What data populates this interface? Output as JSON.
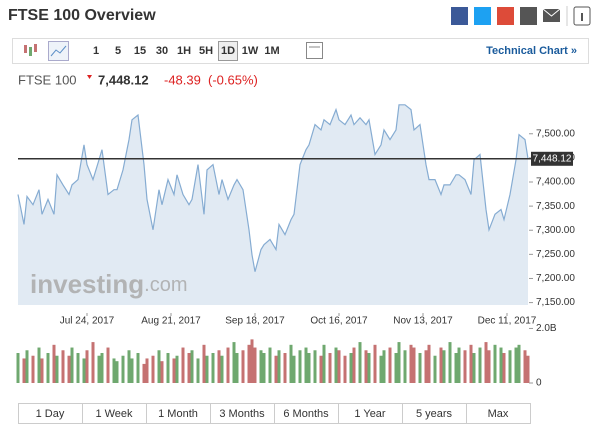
{
  "header": {
    "title": "FTSE 100 Overview"
  },
  "toolbar": {
    "intervals": [
      "1",
      "5",
      "15",
      "30",
      "1H",
      "5H",
      "1D",
      "1W",
      "1M"
    ],
    "active": 6,
    "link": "Technical Chart »"
  },
  "quote": {
    "name": "FTSE 100",
    "price": "7,448.12",
    "change": "-48.39",
    "change_pct": "(-0.65%)"
  },
  "watermark": {
    "brand": "investing",
    "suffix": ".com"
  },
  "periods": [
    "1 Day",
    "1 Week",
    "1 Month",
    "3 Months",
    "6 Months",
    "1 Year",
    "5 years",
    "Max"
  ],
  "chart_data": [
    {
      "type": "area",
      "x": [
        "2017-07-01",
        "2017-07-03",
        "2017-07-04",
        "2017-07-06",
        "2017-07-08",
        "2017-07-09",
        "2017-07-11",
        "2017-07-13",
        "2017-07-14",
        "2017-07-16",
        "2017-07-18",
        "2017-07-19",
        "2017-07-21",
        "2017-07-23",
        "2017-07-24",
        "2017-07-26",
        "2017-07-28",
        "2017-07-29",
        "2017-07-31",
        "2017-08-02",
        "2017-08-03",
        "2017-08-05",
        "2017-08-07",
        "2017-08-08",
        "2017-08-10",
        "2017-08-12",
        "2017-08-13",
        "2017-08-15",
        "2017-08-17",
        "2017-08-18",
        "2017-08-20",
        "2017-08-22",
        "2017-08-23",
        "2017-08-25",
        "2017-08-27",
        "2017-08-28",
        "2017-08-30",
        "2017-09-01",
        "2017-09-02",
        "2017-09-04",
        "2017-09-06",
        "2017-09-07",
        "2017-09-09",
        "2017-09-11",
        "2017-09-12",
        "2017-09-14",
        "2017-09-16",
        "2017-09-17",
        "2017-09-18",
        "2017-09-20",
        "2017-09-21",
        "2017-09-23",
        "2017-09-25",
        "2017-09-26",
        "2017-09-28",
        "2017-09-30",
        "2017-10-01",
        "2017-10-03",
        "2017-10-05",
        "2017-10-06",
        "2017-10-08",
        "2017-10-10",
        "2017-10-11",
        "2017-10-13",
        "2017-10-15",
        "2017-10-16",
        "2017-10-18",
        "2017-10-20",
        "2017-10-21",
        "2017-10-23",
        "2017-10-25",
        "2017-10-26",
        "2017-10-28",
        "2017-10-30",
        "2017-10-31",
        "2017-11-02",
        "2017-11-04",
        "2017-11-05",
        "2017-11-07",
        "2017-11-09",
        "2017-11-10",
        "2017-11-12",
        "2017-11-14",
        "2017-11-15",
        "2017-11-17",
        "2017-11-19",
        "2017-11-20",
        "2017-11-22",
        "2017-11-24",
        "2017-11-25",
        "2017-11-27",
        "2017-11-29",
        "2017-11-30",
        "2017-12-02",
        "2017-12-04",
        "2017-12-05",
        "2017-12-07",
        "2017-12-09",
        "2017-12-10",
        "2017-12-12",
        "2017-12-14",
        "2017-12-15",
        "2017-12-17",
        "2017-12-18"
      ],
      "values": [
        7374,
        7312,
        7370,
        7353,
        7384,
        7333,
        7364,
        7333,
        7415,
        7394,
        7374,
        7394,
        7405,
        7477,
        7436,
        7405,
        7446,
        7467,
        7374,
        7384,
        7384,
        7425,
        7488,
        7529,
        7539,
        7436,
        7364,
        7301,
        7384,
        7353,
        7405,
        7374,
        7415,
        7374,
        7353,
        7364,
        7436,
        7333,
        7425,
        7436,
        7374,
        7405,
        7364,
        7394,
        7405,
        7384,
        7301,
        7249,
        7214,
        7260,
        7270,
        7281,
        7260,
        7312,
        7291,
        7322,
        7333,
        7436,
        7467,
        7477,
        7519,
        7508,
        7529,
        7519,
        7550,
        7529,
        7519,
        7539,
        7519,
        7533,
        7519,
        7529,
        7457,
        7477,
        7508,
        7488,
        7508,
        7560,
        7560,
        7550,
        7508,
        7519,
        7436,
        7405,
        7405,
        7374,
        7394,
        7394,
        7415,
        7415,
        7405,
        7374,
        7446,
        7457,
        7343,
        7301,
        7333,
        7343,
        7322,
        7374,
        7446,
        7498,
        7488,
        7448.12
      ],
      "color": "#86acd2",
      "fill": "#e1eaf3",
      "xlim": [
        "2017-07-01",
        "2017-12-18"
      ],
      "xticks": [
        {
          "value": "2017-07-24",
          "label": "Jul 24, 2017"
        },
        {
          "value": "2017-08-21",
          "label": "Aug 21, 2017"
        },
        {
          "value": "2017-09-18",
          "label": "Sep 18, 2017"
        },
        {
          "value": "2017-10-16",
          "label": "Oct 16, 2017"
        },
        {
          "value": "2017-11-13",
          "label": "Nov 13, 2017"
        },
        {
          "value": "2017-12-11",
          "label": "Dec 11, 2017"
        }
      ],
      "ylim": [
        7145,
        7570
      ],
      "yticks": [
        {
          "value": 7150,
          "label": "7,150.00"
        },
        {
          "value": 7200,
          "label": "7,200.00"
        },
        {
          "value": 7250,
          "label": "7,250.00"
        },
        {
          "value": 7300,
          "label": "7,300.00"
        },
        {
          "value": 7350,
          "label": "7,350.00"
        },
        {
          "value": 7400,
          "label": "7,400.00"
        },
        {
          "value": 7450,
          "label": "7,450.00"
        },
        {
          "value": 7500,
          "label": "7,500.00"
        }
      ],
      "current": {
        "value": 7448.12,
        "label": "7,448.12"
      }
    },
    {
      "type": "bar",
      "values": [
        1.1,
        0.9,
        1.2,
        1.0,
        1.3,
        0.9,
        1.1,
        1.4,
        1.0,
        1.2,
        1.0,
        1.3,
        1.1,
        0.9,
        1.2,
        1.5,
        1.0,
        1.1,
        1.3,
        0.9,
        0.8,
        1.0,
        1.2,
        0.9,
        1.1,
        0.7,
        0.9,
        1.0,
        1.2,
        0.8,
        1.1,
        0.9,
        1.0,
        1.3,
        1.1,
        1.2,
        0.9,
        1.4,
        1.0,
        1.1,
        1.2,
        1.0,
        1.3,
        1.5,
        1.1,
        1.2,
        1.4,
        1.6,
        1.3,
        1.2,
        1.1,
        1.3,
        1.0,
        1.2,
        1.1,
        1.4,
        1.0,
        1.2,
        1.3,
        1.1,
        1.2,
        1.0,
        1.4,
        1.1,
        1.3,
        1.2,
        1.0,
        1.1,
        1.3,
        1.5,
        1.2,
        1.1,
        1.4,
        1.0,
        1.2,
        1.3,
        1.1,
        1.5,
        1.2,
        1.4,
        1.3,
        1.1,
        1.2,
        1.4,
        1.0,
        1.3,
        1.2,
        1.5,
        1.1,
        1.3,
        1.2,
        1.4,
        1.1,
        1.3,
        1.5,
        1.2,
        1.4,
        1.3,
        1.1,
        1.2,
        1.3,
        1.4,
        1.2,
        1.0
      ],
      "colors": {
        "up": "#6fa86f",
        "down": "#c57272"
      },
      "ylim": [
        0,
        2.2
      ],
      "yticks": [
        {
          "value": 2,
          "label": "2.0B"
        },
        0
      ]
    }
  ]
}
